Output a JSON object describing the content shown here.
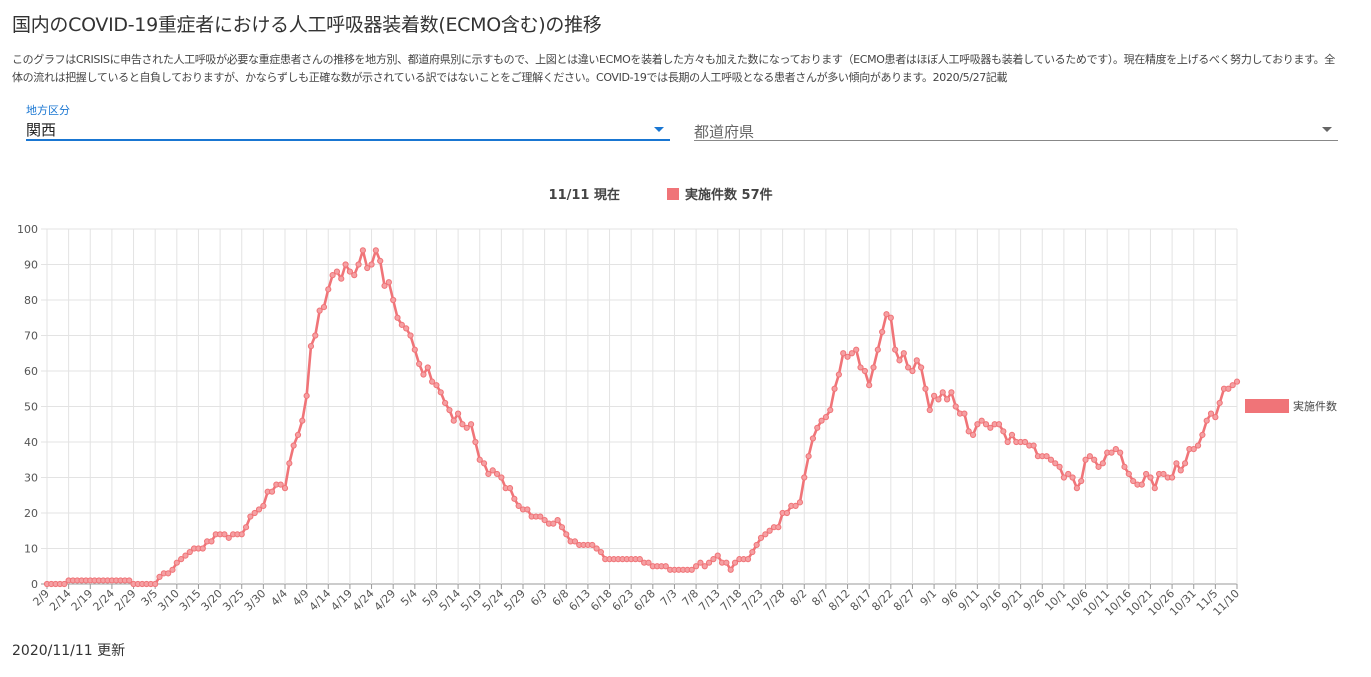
{
  "page": {
    "title": "国内のCOVID-19重症者における人工呼吸器装着数(ECMO含む)の推移",
    "description": "このグラフはCRISISに申告された人工呼吸が必要な重症患者さんの推移を地方別、都道府県別に示すもので、上図とは違いECMOを装着した方々も加えた数になっております（ECMO患者はほぼ人工呼吸器も装着しているためです）。現在精度を上げるべく努力しております。全体の流れは把握していると自負しておりますが、かならずしも正確な数が示されている訳ではないことをご理解ください。COVID-19では長期の人工呼吸となる患者さんが多い傾向があります。2020/5/27記載",
    "updated": "2020/11/11 更新"
  },
  "filters": {
    "region": {
      "label": "地方区分",
      "value": "関西"
    },
    "prefecture": {
      "placeholder": "都道府県"
    }
  },
  "colors": {
    "accent": "#1976d2",
    "series": "#f07478",
    "marker": "#f5a0a3"
  },
  "chart_data": {
    "type": "line",
    "title_date": "11/11 現在",
    "title_series_text": "実施件数 57件",
    "legend": "right",
    "grid": true,
    "ylim": [
      0,
      100
    ],
    "yticks": [
      0,
      10,
      20,
      30,
      40,
      50,
      60,
      70,
      80,
      90,
      100
    ],
    "x_start": "2/9",
    "x_end": "11/11",
    "xtick_labels": [
      "2/9",
      "2/14",
      "2/19",
      "2/24",
      "2/29",
      "3/5",
      "3/10",
      "3/15",
      "3/20",
      "3/25",
      "3/30",
      "4/4",
      "4/9",
      "4/14",
      "4/19",
      "4/24",
      "4/29",
      "5/4",
      "5/9",
      "5/14",
      "5/19",
      "5/24",
      "5/29",
      "6/3",
      "6/8",
      "6/13",
      "6/18",
      "6/23",
      "6/28",
      "7/3",
      "7/8",
      "7/13",
      "7/18",
      "7/23",
      "7/28",
      "8/2",
      "8/7",
      "8/12",
      "8/17",
      "8/22",
      "8/27",
      "9/1",
      "9/6",
      "9/11",
      "9/16",
      "9/21",
      "9/26",
      "10/1",
      "10/6",
      "10/11",
      "10/16",
      "10/21",
      "10/26",
      "10/31",
      "11/5",
      "11/10"
    ],
    "series": [
      {
        "name": "実施件数",
        "color": "#f07478",
        "values": [
          0,
          0,
          0,
          0,
          0,
          1,
          1,
          1,
          1,
          1,
          1,
          1,
          1,
          1,
          1,
          1,
          1,
          1,
          1,
          1,
          0,
          0,
          0,
          0,
          0,
          0,
          2,
          3,
          3,
          4,
          6,
          7,
          8,
          9,
          10,
          10,
          10,
          12,
          12,
          14,
          14,
          14,
          13,
          14,
          14,
          14,
          16,
          19,
          20,
          21,
          22,
          26,
          26,
          28,
          28,
          27,
          34,
          39,
          42,
          46,
          53,
          67,
          70,
          77,
          78,
          83,
          87,
          88,
          86,
          90,
          88,
          87,
          90,
          94,
          89,
          90,
          94,
          91,
          84,
          85,
          80,
          75,
          73,
          72,
          70,
          66,
          62,
          59,
          61,
          57,
          56,
          54,
          51,
          49,
          46,
          48,
          45,
          44,
          45,
          40,
          35,
          34,
          31,
          32,
          31,
          30,
          27,
          27,
          24,
          22,
          21,
          21,
          19,
          19,
          19,
          18,
          17,
          17,
          18,
          16,
          14,
          12,
          12,
          11,
          11,
          11,
          11,
          10,
          9,
          7,
          7,
          7,
          7,
          7,
          7,
          7,
          7,
          7,
          6,
          6,
          5,
          5,
          5,
          5,
          4,
          4,
          4,
          4,
          4,
          4,
          5,
          6,
          5,
          6,
          7,
          8,
          6,
          6,
          4,
          6,
          7,
          7,
          7,
          9,
          11,
          13,
          14,
          15,
          16,
          16,
          20,
          20,
          22,
          22,
          23,
          30,
          36,
          41,
          44,
          46,
          47,
          49,
          55,
          59,
          65,
          64,
          65,
          66,
          61,
          60,
          56,
          61,
          66,
          71,
          76,
          75,
          66,
          63,
          65,
          61,
          60,
          63,
          61,
          55,
          49,
          53,
          52,
          54,
          52,
          54,
          50,
          48,
          48,
          43,
          42,
          45,
          46,
          45,
          44,
          45,
          45,
          43,
          40,
          42,
          40,
          40,
          40,
          39,
          39,
          36,
          36,
          36,
          35,
          34,
          33,
          30,
          31,
          30,
          27,
          29,
          35,
          36,
          35,
          33,
          34,
          37,
          37,
          38,
          37,
          33,
          31,
          29,
          28,
          28,
          31,
          30,
          27,
          31,
          31,
          30,
          30,
          34,
          32,
          34,
          38,
          38,
          39,
          42,
          46,
          48,
          47,
          51,
          55,
          55,
          56,
          57
        ]
      }
    ]
  }
}
